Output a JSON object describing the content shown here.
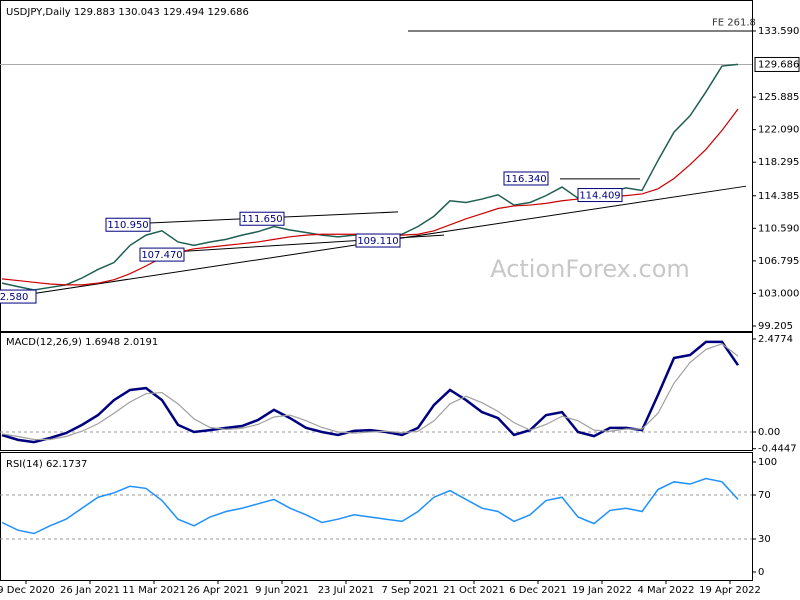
{
  "chart_data": [
    {
      "type": "line",
      "title": "USDJPY,Daily  129.883 130.043 129.494 129.686",
      "watermark": "ActionForex.com",
      "x": [
        0,
        8,
        16,
        24,
        32,
        40,
        48,
        56,
        64,
        72,
        80,
        88,
        96,
        104,
        112,
        120,
        128,
        136,
        144,
        152,
        160,
        168,
        176,
        184,
        192,
        200,
        208,
        216,
        224,
        232,
        240,
        248,
        256,
        264,
        272,
        280,
        288,
        296,
        304,
        312,
        320,
        328,
        336,
        344,
        352,
        360,
        368
      ],
      "series": [
        {
          "color": "#1f5f52",
          "values": [
            104.2,
            103.8,
            103.4,
            103.7,
            104.0,
            104.8,
            105.8,
            106.6,
            108.6,
            109.8,
            110.3,
            109.0,
            108.6,
            109.0,
            109.3,
            109.8,
            110.2,
            110.8,
            110.4,
            110.1,
            109.8,
            109.6,
            109.8,
            109.9,
            109.7,
            109.9,
            110.8,
            112.0,
            113.8,
            113.6,
            114.0,
            114.5,
            113.3,
            113.6,
            114.4,
            115.4,
            114.1,
            114.6,
            114.8,
            115.3,
            115.0,
            118.5,
            121.8,
            123.7,
            126.5,
            129.5,
            129.7
          ]
        },
        {
          "color": "#cc0000",
          "values": [
            104.7,
            104.5,
            104.3,
            104.1,
            104.0,
            104.0,
            104.2,
            104.6,
            105.3,
            106.2,
            107.2,
            107.8,
            108.2,
            108.4,
            108.6,
            108.8,
            109.0,
            109.3,
            109.6,
            109.8,
            109.9,
            109.9,
            109.9,
            109.9,
            109.8,
            109.8,
            109.9,
            110.3,
            111.0,
            111.7,
            112.3,
            112.9,
            113.2,
            113.3,
            113.5,
            113.8,
            114.0,
            114.1,
            114.3,
            114.4,
            114.6,
            115.2,
            116.4,
            118.0,
            119.8,
            122.0,
            124.5
          ]
        }
      ],
      "last": 129.686,
      "xlim": [
        -1,
        375
      ],
      "ylim": [
        98.74,
        136.85
      ],
      "yticks": [
        {
          "value": 133.59,
          "label": "133.590"
        },
        125.885,
        {
          "value": 122.09,
          "label": "122.090"
        },
        118.295,
        114.385,
        {
          "value": 110.59,
          "label": "110.590"
        },
        106.795,
        {
          "value": 103,
          "label": "103.000"
        },
        99.205
      ],
      "lines": [
        {
          "x": [
            -1,
            372
          ],
          "y": [
            102.4,
            115.5
          ]
        },
        {
          "x": [
            53,
            198
          ],
          "y": [
            111.0,
            112.5
          ]
        },
        {
          "x": [
            69,
            221
          ],
          "y": [
            107.6,
            109.8
          ]
        },
        {
          "x": [
            279,
            319
          ],
          "y": [
            116.35,
            116.35
          ]
        },
        {
          "x": [
            203,
            375
          ],
          "y": [
            133.59,
            133.59
          ]
        }
      ],
      "annotations": [
        {
          "text": "110.950",
          "x": 63,
          "y": 110.95
        },
        {
          "text": "111.650",
          "x": 130,
          "y": 111.65
        },
        {
          "text": "107.470",
          "x": 80,
          "y": 107.47
        },
        {
          "text": "109.110",
          "x": 188,
          "y": 109.11
        },
        {
          "text": "116.340",
          "x": 262,
          "y": 116.34
        },
        {
          "text": "114.409",
          "x": 299,
          "y": 114.41
        },
        {
          "text": "2.580",
          "x": 6,
          "y": 102.58
        },
        {
          "text": "FE 261.8",
          "x": 366,
          "y": 134.6
        }
      ]
    },
    {
      "type": "line",
      "title": "MACD(12,26,9) 1.6948 2.0191",
      "x": [
        0,
        8,
        16,
        24,
        32,
        40,
        48,
        56,
        64,
        72,
        80,
        88,
        96,
        104,
        112,
        120,
        128,
        136,
        144,
        152,
        160,
        168,
        176,
        184,
        192,
        200,
        208,
        216,
        224,
        232,
        240,
        248,
        256,
        264,
        272,
        280,
        288,
        296,
        304,
        312,
        320,
        328,
        336,
        344,
        352,
        360,
        368
      ],
      "series": [
        {
          "color": "#00007f",
          "values": [
            -0.08,
            -0.21,
            -0.27,
            -0.16,
            -0.03,
            0.19,
            0.45,
            0.85,
            1.12,
            1.17,
            0.85,
            0.19,
            0,
            0.05,
            0.11,
            0.16,
            0.32,
            0.59,
            0.37,
            0.11,
            0,
            -0.08,
            0.03,
            0.05,
            0,
            -0.08,
            0.11,
            0.72,
            1.12,
            0.85,
            0.53,
            0.37,
            -0.08,
            0.05,
            0.45,
            0.53,
            0,
            -0.11,
            0.11,
            0.11,
            0.05,
            0.99,
            1.97,
            2.05,
            2.4,
            2.4,
            1.78
          ]
        },
        {
          "color": "#a0a0a0",
          "values": [
            -0.05,
            -0.12,
            -0.2,
            -0.2,
            -0.12,
            0.02,
            0.22,
            0.5,
            0.8,
            1.02,
            1.05,
            0.75,
            0.35,
            0.12,
            0.07,
            0.1,
            0.2,
            0.4,
            0.45,
            0.3,
            0.12,
            0,
            -0.03,
            0,
            0.02,
            -0.02,
            0.02,
            0.3,
            0.75,
            0.95,
            0.78,
            0.55,
            0.25,
            0.05,
            0.2,
            0.42,
            0.3,
            0.05,
            0.02,
            0.08,
            0.08,
            0.5,
            1.3,
            1.85,
            2.2,
            2.35,
            2.02
          ]
        }
      ],
      "xlim": [
        -1,
        375
      ],
      "ylim": [
        -0.4795,
        2.637
      ],
      "yticks": [
        2.4774,
        {
          "value": 0,
          "label": "0.00"
        },
        -0.4447
      ],
      "levels": [
        0
      ]
    },
    {
      "type": "line",
      "title": "RSI(14) 62.1737",
      "x": [
        0,
        8,
        16,
        24,
        32,
        40,
        48,
        56,
        64,
        72,
        80,
        88,
        96,
        104,
        112,
        120,
        128,
        136,
        144,
        152,
        160,
        168,
        176,
        184,
        192,
        200,
        208,
        216,
        224,
        232,
        240,
        248,
        256,
        264,
        272,
        280,
        288,
        296,
        304,
        312,
        320,
        328,
        336,
        344,
        352,
        360,
        368
      ],
      "series": [
        {
          "color": "#1e90ff",
          "values": [
            45,
            38,
            35,
            42,
            48,
            58,
            68,
            72,
            78,
            76,
            65,
            48,
            42,
            50,
            55,
            58,
            62,
            66,
            58,
            52,
            45,
            48,
            52,
            50,
            48,
            46,
            55,
            68,
            74,
            66,
            58,
            55,
            46,
            52,
            65,
            68,
            50,
            44,
            56,
            58,
            55,
            75,
            82,
            80,
            85,
            82,
            66
          ]
        }
      ],
      "xlim": [
        -1,
        375
      ],
      "ylim": [
        -7.3,
        106.4
      ],
      "yticks": [
        100,
        70,
        30,
        0
      ],
      "levels": [
        30,
        70
      ],
      "xticks": [
        {
          "value": 12,
          "label": "9 Dec 2020"
        },
        {
          "value": 44,
          "label": "26 Jan 2021"
        },
        {
          "value": 76,
          "label": "11 Mar 2021"
        },
        {
          "value": 108,
          "label": "26 Apr 2021"
        },
        {
          "value": 140,
          "label": "9 Jun 2021"
        },
        {
          "value": 172,
          "label": "23 Jul 2021"
        },
        {
          "value": 204,
          "label": "7 Sep 2021"
        },
        {
          "value": 236,
          "label": "21 Oct 2021"
        },
        {
          "value": 268,
          "label": "6 Dec 2021"
        },
        {
          "value": 300,
          "label": "19 Jan 2022"
        },
        {
          "value": 332,
          "label": "4 Mar 2022"
        },
        {
          "value": 364,
          "label": "19 Apr 2022"
        }
      ]
    }
  ]
}
